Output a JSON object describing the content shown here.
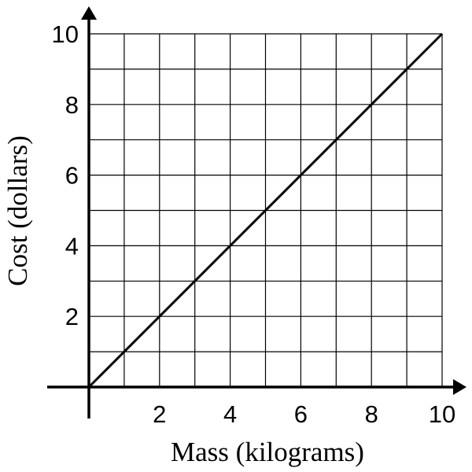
{
  "chart_data": {
    "type": "line",
    "title": "",
    "xlabel": "Mass (kilograms)",
    "ylabel": "Cost (dollars)",
    "xlim": [
      0,
      10
    ],
    "ylim": [
      0,
      10
    ],
    "grid": true,
    "grid_step": 1,
    "xticks": [
      2,
      4,
      6,
      8,
      10
    ],
    "yticks": [
      2,
      4,
      6,
      8,
      10
    ],
    "xtick_labels": [
      "2",
      "4",
      "6",
      "8",
      "10"
    ],
    "ytick_labels": [
      "2",
      "4",
      "6",
      "8",
      "10"
    ],
    "series": [
      {
        "name": "cost",
        "x": [
          0,
          10
        ],
        "y": [
          0,
          10
        ],
        "color": "#000000"
      }
    ]
  }
}
